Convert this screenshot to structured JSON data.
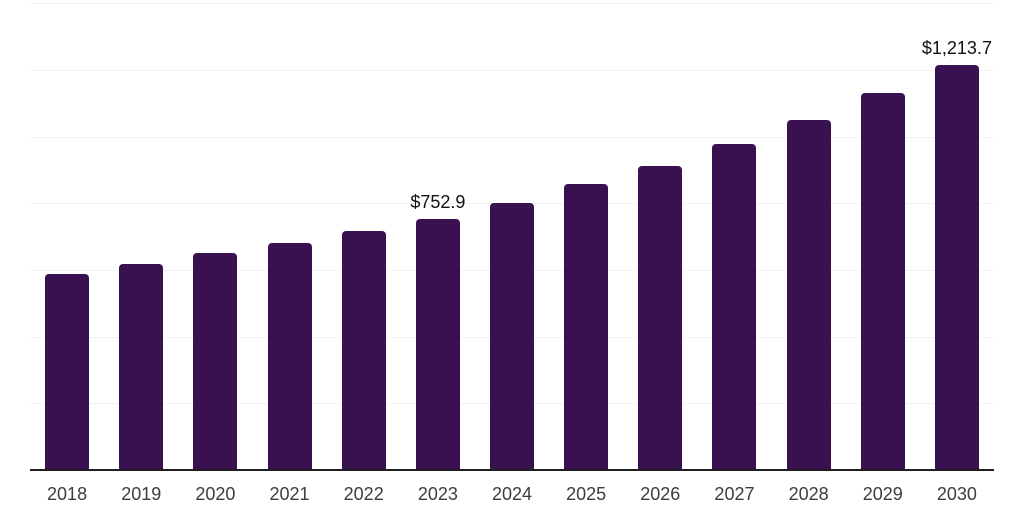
{
  "chart_data": {
    "type": "bar",
    "title": "",
    "xlabel": "",
    "ylabel": "",
    "categories": [
      "2018",
      "2019",
      "2020",
      "2021",
      "2022",
      "2023",
      "2024",
      "2025",
      "2026",
      "2027",
      "2028",
      "2029",
      "2030"
    ],
    "values": [
      588,
      618,
      650,
      682,
      717,
      752.9,
      801,
      857,
      912,
      977,
      1050,
      1132,
      1213.7
    ],
    "value_labels": [
      {
        "category": "2023",
        "text": "$752.9"
      },
      {
        "category": "2030",
        "text": "$1,213.7"
      }
    ],
    "ylim": [
      0,
      1400
    ],
    "gridline_interval": 200,
    "grid": true,
    "legend": "none",
    "colors": {
      "bar": "#3a1150",
      "gridline": "#f2f2f2",
      "axis_line": "#1f1f1f",
      "tick_label": "#3d3d3d",
      "value_label": "#111111",
      "background": "#ffffff"
    }
  }
}
